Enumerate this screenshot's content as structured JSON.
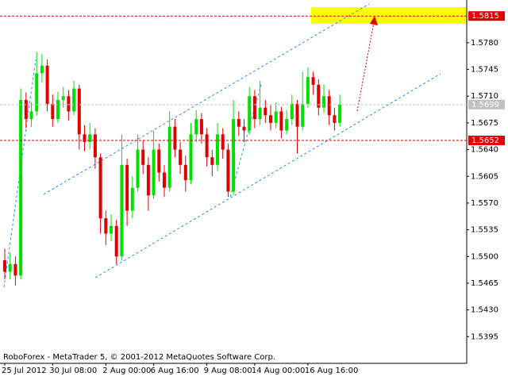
{
  "chart_data": {
    "type": "candlestick",
    "footer": "RoboForex - MetaTrader 5, © 2001-2012 MetaQuotes Software Corp.",
    "categories": [
      "25 Jul 2012",
      null,
      null,
      null,
      null,
      null,
      null,
      null,
      null,
      "30 Jul 08:00",
      null,
      null,
      null,
      null,
      null,
      null,
      null,
      null,
      null,
      "2 Aug 00:00",
      null,
      null,
      null,
      null,
      null,
      null,
      null,
      null,
      "6 Aug 16:00",
      null,
      null,
      null,
      null,
      null,
      null,
      null,
      null,
      null,
      "9 Aug 08:00",
      null,
      null,
      null,
      null,
      null,
      null,
      null,
      null,
      "14 Aug 00:00",
      null,
      null,
      null,
      null,
      null,
      null,
      null,
      null,
      null,
      "16 Aug 16:00",
      null,
      null,
      null,
      null,
      null,
      null
    ],
    "open": [
      1.5495,
      1.548,
      1.549,
      1.5475,
      1.5705,
      1.568,
      1.569,
      1.574,
      1.575,
      1.57,
      1.568,
      1.5705,
      1.571,
      1.569,
      1.572,
      1.566,
      1.565,
      1.566,
      1.563,
      1.555,
      1.553,
      1.554,
      1.55,
      1.562,
      1.556,
      1.559,
      1.564,
      1.562,
      1.558,
      1.564,
      1.561,
      1.559,
      1.567,
      1.564,
      1.562,
      1.56,
      1.566,
      1.568,
      1.566,
      1.563,
      1.562,
      1.566,
      1.564,
      1.5585,
      1.568,
      1.567,
      1.5665,
      1.571,
      1.568,
      1.5695,
      1.5685,
      1.5675,
      1.569,
      1.5665,
      1.568,
      1.57,
      1.567,
      1.57,
      1.5735,
      1.5725,
      1.5695,
      1.571,
      1.5685,
      1.5675
    ],
    "high": [
      1.551,
      1.5505,
      1.55,
      1.572,
      1.5715,
      1.5702,
      1.5768,
      1.5765,
      1.5758,
      1.5712,
      1.5716,
      1.5722,
      1.5718,
      1.573,
      1.5725,
      1.5672,
      1.5675,
      1.5668,
      1.5635,
      1.556,
      1.5555,
      1.5548,
      1.566,
      1.5628,
      1.5605,
      1.566,
      1.5652,
      1.563,
      1.5665,
      1.5648,
      1.562,
      1.569,
      1.568,
      1.565,
      1.5632,
      1.5675,
      1.5692,
      1.5688,
      1.5668,
      1.564,
      1.5675,
      1.5668,
      1.5648,
      1.5705,
      1.569,
      1.568,
      1.5722,
      1.5718,
      1.573,
      1.5705,
      1.5698,
      1.5702,
      1.5696,
      1.5692,
      1.5712,
      1.5705,
      1.5742,
      1.5748,
      1.5742,
      1.5732,
      1.5725,
      1.5718,
      1.5695,
      1.5712
    ],
    "low": [
      1.547,
      1.547,
      1.5462,
      1.547,
      1.5668,
      1.567,
      1.5685,
      1.5728,
      1.569,
      1.567,
      1.5675,
      1.5695,
      1.5678,
      1.5685,
      1.564,
      1.5638,
      1.564,
      1.5615,
      1.553,
      1.5515,
      1.552,
      1.549,
      1.5495,
      1.554,
      1.555,
      1.5585,
      1.5608,
      1.556,
      1.5575,
      1.5598,
      1.5578,
      1.5585,
      1.563,
      1.5608,
      1.5585,
      1.5595,
      1.565,
      1.5648,
      1.5618,
      1.5605,
      1.5612,
      1.5628,
      1.5578,
      1.558,
      1.5658,
      1.565,
      1.566,
      1.5668,
      1.5672,
      1.5675,
      1.5665,
      1.5668,
      1.5655,
      1.566,
      1.5672,
      1.5635,
      1.5665,
      1.5695,
      1.5712,
      1.5685,
      1.5688,
      1.5672,
      1.5665,
      1.567
    ],
    "close": [
      1.548,
      1.549,
      1.5475,
      1.5705,
      1.568,
      1.569,
      1.574,
      1.575,
      1.57,
      1.568,
      1.5705,
      1.571,
      1.569,
      1.572,
      1.566,
      1.565,
      1.566,
      1.563,
      1.555,
      1.553,
      1.554,
      1.55,
      1.562,
      1.556,
      1.559,
      1.564,
      1.562,
      1.558,
      1.564,
      1.561,
      1.559,
      1.567,
      1.564,
      1.562,
      1.56,
      1.566,
      1.568,
      1.566,
      1.563,
      1.562,
      1.566,
      1.564,
      1.5585,
      1.568,
      1.567,
      1.5665,
      1.571,
      1.568,
      1.5695,
      1.5685,
      1.5675,
      1.569,
      1.5665,
      1.568,
      1.57,
      1.567,
      1.57,
      1.5735,
      1.5725,
      1.5695,
      1.571,
      1.5685,
      1.5675,
      1.5699
    ],
    "up_color": "#00e000",
    "down_color": "#e00000",
    "ylim": [
      1.536,
      1.5836
    ],
    "yticks": [
      {
        "value": 1.578,
        "label": "1.5780"
      },
      1.5745,
      {
        "value": 1.571,
        "label": "1.5710"
      },
      1.5675,
      {
        "value": 1.564,
        "label": "1.5640"
      },
      1.5605,
      {
        "value": 1.557,
        "label": "1.5570"
      },
      1.5535,
      {
        "value": 1.55,
        "label": "1.5500"
      },
      1.5465,
      {
        "value": 1.543,
        "label": "1.5430"
      },
      1.5395
    ],
    "price_lines": [
      {
        "value": 1.5815,
        "color": "#e00000"
      },
      {
        "value": 1.5699,
        "color": "#c0c0c0"
      },
      {
        "value": 1.5652,
        "color": "#e00000"
      }
    ]
  }
}
